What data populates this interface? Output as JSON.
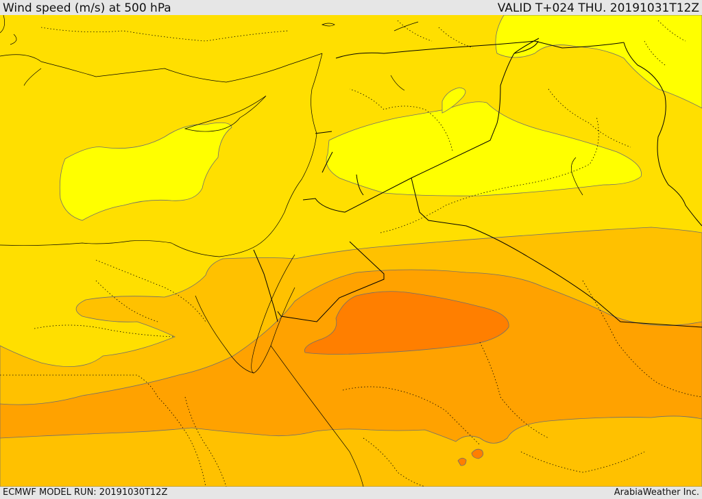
{
  "header": {
    "title": "Wind speed (m/s) at 500 hPa",
    "valid": "VALID T+024 THU. 20191031T12Z"
  },
  "footer": {
    "model_run": "ECMWF MODEL RUN: 20191030T12Z",
    "credit": "ArabiaWeather Inc."
  },
  "map": {
    "variable": "wind speed at 500 hPa",
    "units": "m/s",
    "colors": {
      "lowest": "#ffff00",
      "low": "#ffdf00",
      "moderate": "#ffc100",
      "high": "#ffa200",
      "highest": "#ff7f00",
      "contour": "#6e6e6e",
      "border": "#000000"
    }
  }
}
